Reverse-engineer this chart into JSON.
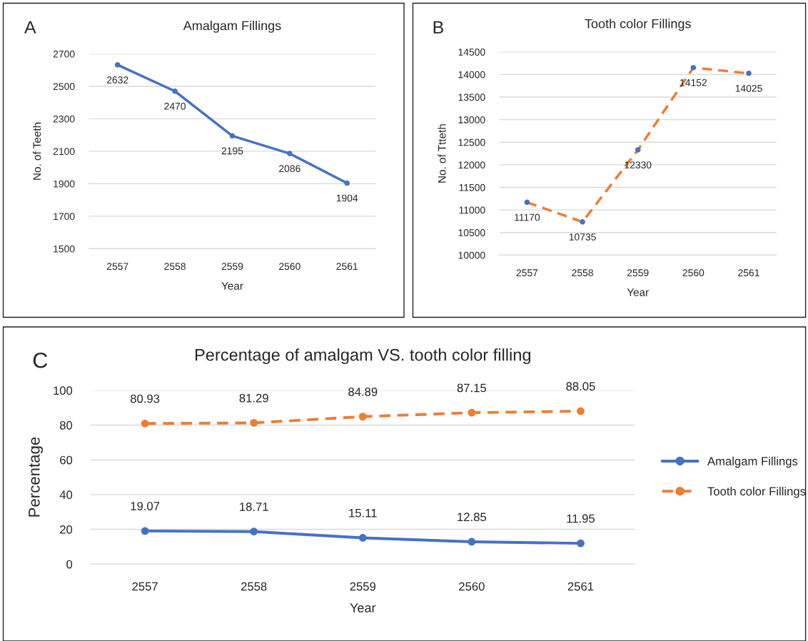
{
  "chart_data": [
    {
      "type": "line",
      "title": "Amalgam Fillings",
      "xlabel": "Year",
      "ylabel": "No. of Teeth",
      "annotations": [
        "A"
      ],
      "categories": [
        "2557",
        "2558",
        "2559",
        "2560",
        "2561"
      ],
      "series": [
        {
          "color": "#4472c4",
          "values": [
            2632,
            2470,
            2195,
            2086,
            1904
          ],
          "line_style": "solid"
        }
      ],
      "ylim": [
        1500,
        2700
      ],
      "yticks": [
        1500,
        1700,
        1900,
        2100,
        2300,
        2500,
        2700
      ],
      "grid": "y",
      "marker": "circle",
      "data_labels": true,
      "legend": false
    },
    {
      "type": "line",
      "title": "Tooth color Fillings",
      "xlabel": "Year",
      "ylabel": "No. of Ttteth",
      "annotations": [
        "B"
      ],
      "categories": [
        "2557",
        "2558",
        "2559",
        "2560",
        "2561"
      ],
      "series": [
        {
          "color": "#ed7d31",
          "colors": [
            "#4472c4",
            "#4472c4",
            "#4472c4",
            "#4472c4",
            "#4472c4"
          ],
          "values": [
            11170,
            10735,
            12330,
            14152,
            14025
          ],
          "line_style": "dashed"
        }
      ],
      "ylim": [
        10000,
        14500
      ],
      "yticks": [
        10000,
        10500,
        11000,
        11500,
        12000,
        12500,
        13000,
        13500,
        14000,
        14500
      ],
      "grid": "y",
      "marker": "circle",
      "data_labels": true,
      "legend": false
    },
    {
      "type": "line",
      "title": "Percentage of amalgam VS. tooth color filling",
      "xlabel": "Year",
      "ylabel": "Percentage",
      "annotations": [
        "C"
      ],
      "categories": [
        "2557",
        "2558",
        "2559",
        "2560",
        "2561"
      ],
      "series": [
        {
          "name": "Amalgam Fillings",
          "color": "#4472c4",
          "values": [
            19.07,
            18.71,
            15.11,
            12.85,
            11.95
          ],
          "line_style": "solid"
        },
        {
          "name": "Tooth color Fillings",
          "color": "#ed7d31",
          "values": [
            80.93,
            81.29,
            84.89,
            87.15,
            88.05
          ],
          "line_style": "dashed"
        }
      ],
      "ylim": [
        0,
        100
      ],
      "yticks": [
        0,
        20,
        40,
        60,
        80,
        100
      ],
      "grid": "y",
      "marker": "circle",
      "data_labels": true,
      "legend": "right"
    }
  ]
}
